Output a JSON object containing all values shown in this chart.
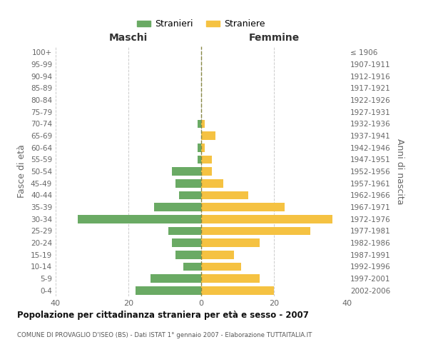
{
  "age_groups": [
    "0-4",
    "5-9",
    "10-14",
    "15-19",
    "20-24",
    "25-29",
    "30-34",
    "35-39",
    "40-44",
    "45-49",
    "50-54",
    "55-59",
    "60-64",
    "65-69",
    "70-74",
    "75-79",
    "80-84",
    "85-89",
    "90-94",
    "95-99",
    "100+"
  ],
  "birth_years": [
    "2002-2006",
    "1997-2001",
    "1992-1996",
    "1987-1991",
    "1982-1986",
    "1977-1981",
    "1972-1976",
    "1967-1971",
    "1962-1966",
    "1957-1961",
    "1952-1956",
    "1947-1951",
    "1942-1946",
    "1937-1941",
    "1932-1936",
    "1927-1931",
    "1922-1926",
    "1917-1921",
    "1912-1916",
    "1907-1911",
    "≤ 1906"
  ],
  "maschi": [
    18,
    14,
    5,
    7,
    8,
    9,
    34,
    13,
    6,
    7,
    8,
    1,
    1,
    0,
    1,
    0,
    0,
    0,
    0,
    0,
    0
  ],
  "femmine": [
    20,
    16,
    11,
    9,
    16,
    30,
    36,
    23,
    13,
    6,
    3,
    3,
    1,
    4,
    1,
    0,
    0,
    0,
    0,
    0,
    0
  ],
  "maschi_color": "#6aaa64",
  "femmine_color": "#f5c242",
  "title": "Popolazione per cittadinanza straniera per età e sesso - 2007",
  "subtitle": "COMUNE DI PROVAGLIO D'ISEO (BS) - Dati ISTAT 1° gennaio 2007 - Elaborazione TUTTAITALIA.IT",
  "xlabel_left": "Maschi",
  "xlabel_right": "Femmine",
  "ylabel_left": "Fasce di età",
  "ylabel_right": "Anni di nascita",
  "xlim": 40,
  "legend_stranieri": "Stranieri",
  "legend_straniere": "Straniere",
  "bg_color": "#ffffff",
  "grid_color": "#cccccc"
}
